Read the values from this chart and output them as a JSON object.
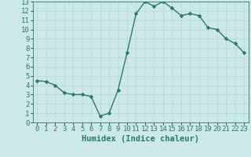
{
  "x": [
    0,
    1,
    2,
    3,
    4,
    5,
    6,
    7,
    8,
    9,
    10,
    11,
    12,
    13,
    14,
    15,
    16,
    17,
    18,
    19,
    20,
    21,
    22,
    23
  ],
  "y": [
    4.5,
    4.4,
    4.0,
    3.2,
    3.0,
    3.0,
    2.8,
    0.7,
    1.0,
    3.5,
    7.5,
    11.7,
    13.0,
    12.5,
    13.0,
    12.3,
    11.5,
    11.7,
    11.5,
    10.2,
    10.0,
    9.0,
    8.5,
    7.5
  ],
  "xlim": [
    -0.5,
    23.5
  ],
  "ylim": [
    0,
    13
  ],
  "xlabel": "Humidex (Indice chaleur)",
  "xticks": [
    0,
    1,
    2,
    3,
    4,
    5,
    6,
    7,
    8,
    9,
    10,
    11,
    12,
    13,
    14,
    15,
    16,
    17,
    18,
    19,
    20,
    21,
    22,
    23
  ],
  "yticks": [
    0,
    1,
    2,
    3,
    4,
    5,
    6,
    7,
    8,
    9,
    10,
    11,
    12,
    13
  ],
  "line_color": "#2a7a6a",
  "marker_color": "#2a7a6a",
  "bg_color": "#cce8e8",
  "grid_color": "#b8d8d0",
  "xlabel_fontsize": 7.5,
  "tick_fontsize": 6.5,
  "line_width": 1.0,
  "marker_size": 2.5
}
